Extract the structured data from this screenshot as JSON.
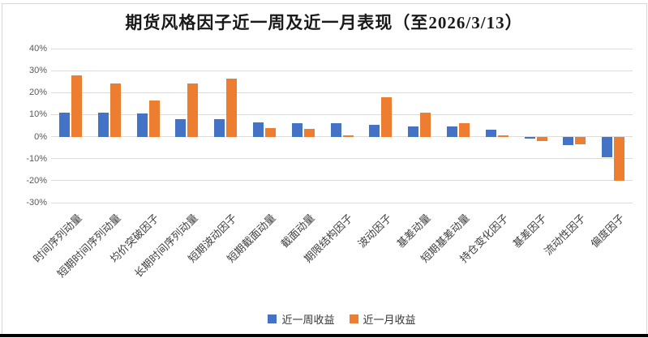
{
  "title": "期货风格因子近一周及近一月表现（至2026/3/13）",
  "colors": {
    "week_blue": "#4472C4",
    "month_orange": "#ED7D31",
    "gridline": "#dcdcdc",
    "axis_text": "#595959",
    "label_text": "#3f3f3f",
    "title_text": "#1a1a1a",
    "bottom_bar": "#000000"
  },
  "legend": {
    "items": [
      {
        "label": "近一周收益",
        "color": "#4472C4"
      },
      {
        "label": "近一月收益",
        "color": "#ED7D31"
      }
    ]
  },
  "chart_data": {
    "type": "bar",
    "title": "期货风格因子近一周及近一月表现（至2026/3/13）",
    "categories": [
      "时间序列动量",
      "短期时间序列动量",
      "均价突破因子",
      "长期时间序列动量",
      "短期波动因子",
      "短期截面动量",
      "截面动量",
      "期限结构因子",
      "波动因子",
      "基差动量",
      "短期基差动量",
      "持仓变化因子",
      "基差因子",
      "流动性因子",
      "偏度因子"
    ],
    "series": [
      {
        "name": "近一周收益",
        "color": "#4472C4",
        "values": [
          11,
          11,
          10.5,
          8,
          8,
          6.5,
          6,
          6,
          5.5,
          4.5,
          4.5,
          3,
          -1,
          -4,
          -9.5
        ]
      },
      {
        "name": "近一月收益",
        "color": "#ED7D31",
        "values": [
          28,
          24,
          16.5,
          24,
          26.5,
          4,
          3.5,
          0.5,
          18,
          11,
          6,
          0.5,
          -2,
          -3.5,
          -20
        ]
      }
    ],
    "ylim": [
      -30,
      40
    ],
    "ytick_step": 10,
    "ytick_suffix": "%",
    "grid": true,
    "legend_position": "bottom",
    "xlabel": "",
    "ylabel": ""
  }
}
